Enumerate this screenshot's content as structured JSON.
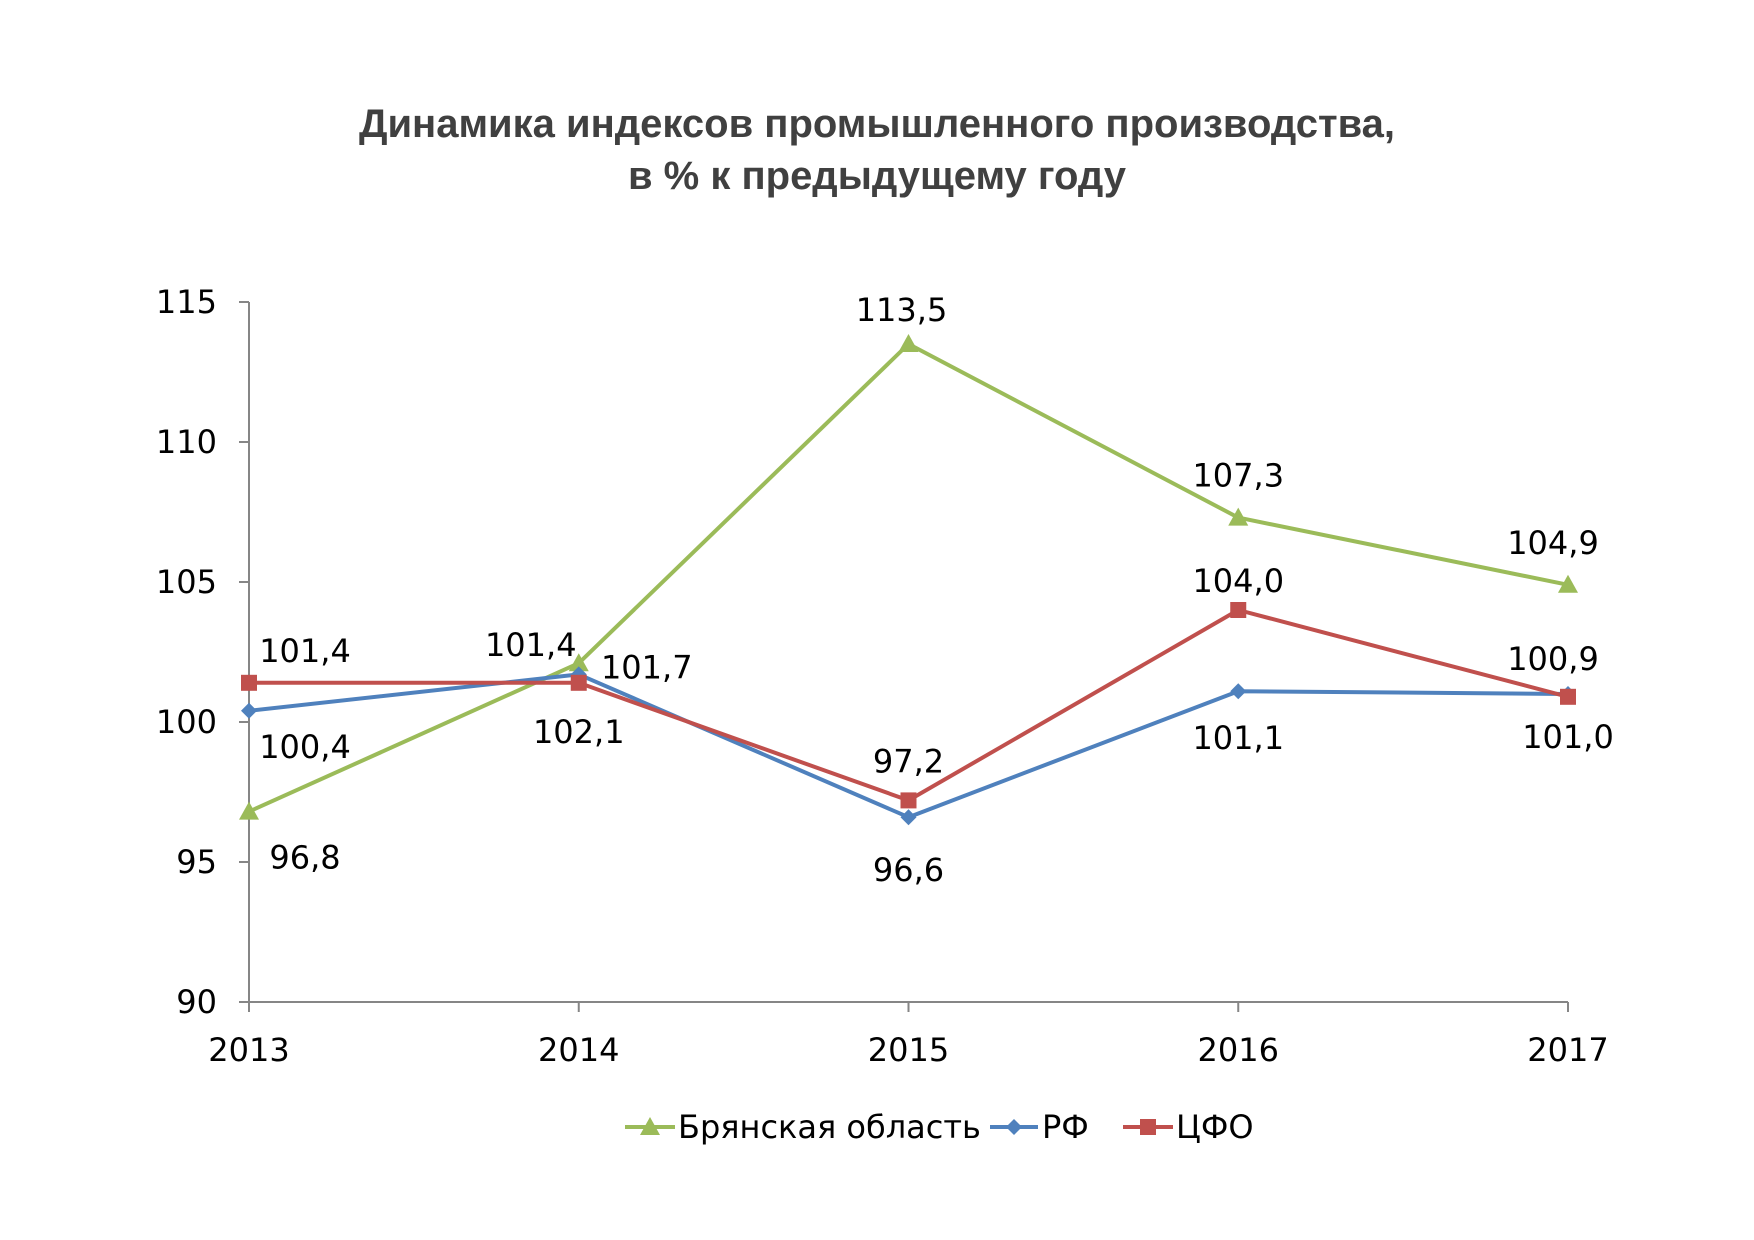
{
  "chart_data": {
    "type": "line",
    "title_line1": "Динамика индексов промышленного производства,",
    "title_line2": "в % к предыдущему году",
    "xlabel": "",
    "ylabel": "",
    "categories": [
      "2013",
      "2014",
      "2015",
      "2016",
      "2017"
    ],
    "ylim": [
      90,
      115
    ],
    "yticks": [
      "90",
      "95",
      "100",
      "105",
      "110",
      "115"
    ],
    "grid": false,
    "legend_position": "bottom",
    "series": [
      {
        "name": "Брянская область",
        "color": "#9BBB59",
        "marker": "triangle",
        "values": [
          96.8,
          102.1,
          113.5,
          107.3,
          104.9
        ],
        "labels": [
          "96,8",
          "102,1",
          "113,5",
          "107,3",
          "104,9"
        ]
      },
      {
        "name": "РФ",
        "color": "#4F81BD",
        "marker": "diamond",
        "values": [
          100.4,
          101.7,
          96.6,
          101.1,
          101.0
        ],
        "labels": [
          "100,4",
          "101,7",
          "96,6",
          "101,1",
          "101,0"
        ]
      },
      {
        "name": "ЦФО",
        "color": "#C0504D",
        "marker": "square",
        "values": [
          101.4,
          101.4,
          97.2,
          104.0,
          100.9
        ],
        "labels": [
          "101,4",
          "101,4",
          "97,2",
          "104,0",
          "100,9"
        ]
      }
    ]
  }
}
